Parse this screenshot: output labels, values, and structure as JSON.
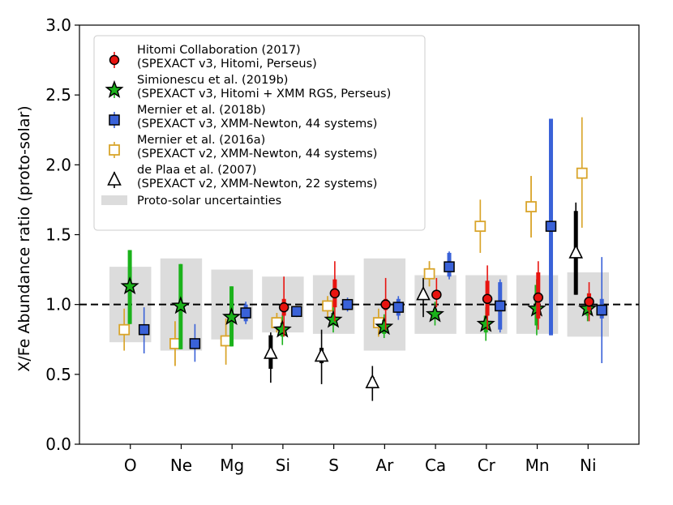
{
  "chart_data": {
    "type": "scatter",
    "title": "",
    "xlabel": "",
    "ylabel": "X/Fe Abundance ratio (proto-solar)",
    "ylim": [
      0.0,
      3.0
    ],
    "yticks": [
      "0.0",
      "0.5",
      "1.0",
      "1.5",
      "2.0",
      "2.5",
      "3.0"
    ],
    "categories": [
      "O",
      "Ne",
      "Mg",
      "Si",
      "S",
      "Ar",
      "Ca",
      "Cr",
      "Mn",
      "Ni"
    ],
    "reference_line": 1.0,
    "proto_solar_band": [
      {
        "lo": 0.73,
        "hi": 1.27
      },
      {
        "lo": 0.67,
        "hi": 1.33
      },
      {
        "lo": 0.75,
        "hi": 1.25
      },
      {
        "lo": 0.8,
        "hi": 1.2
      },
      {
        "lo": 0.79,
        "hi": 1.21
      },
      {
        "lo": 0.67,
        "hi": 1.33
      },
      {
        "lo": 0.79,
        "hi": 1.21
      },
      {
        "lo": 0.79,
        "hi": 1.21
      },
      {
        "lo": 0.79,
        "hi": 1.21
      },
      {
        "lo": 0.77,
        "hi": 1.23
      }
    ],
    "series": [
      {
        "name": "Hitomi Collaboration (2017)",
        "detail": "(SPEXACT v3, Hitomi, Perseus)",
        "marker": "circle",
        "color": "#e8130f",
        "offset": 0.02,
        "points": [
          {
            "x": "Si",
            "y": 0.98,
            "inner": [
              0.92,
              1.04
            ],
            "outer": [
              0.77,
              1.2
            ]
          },
          {
            "x": "S",
            "y": 1.08,
            "inner": [
              0.98,
              1.18
            ],
            "outer": [
              0.88,
              1.31
            ]
          },
          {
            "x": "Ar",
            "y": 1.0,
            "inner": [
              0.96,
              1.04
            ],
            "outer": [
              0.82,
              1.19
            ]
          },
          {
            "x": "Ca",
            "y": 1.07,
            "inner": [
              1.04,
              1.1
            ],
            "outer": [
              0.98,
              1.19
            ]
          },
          {
            "x": "Cr",
            "y": 1.04,
            "inner": [
              0.92,
              1.17
            ],
            "outer": [
              0.82,
              1.28
            ]
          },
          {
            "x": "Mn",
            "y": 1.05,
            "inner": [
              0.9,
              1.23
            ],
            "outer": [
              0.82,
              1.31
            ]
          },
          {
            "x": "Ni",
            "y": 1.02,
            "inner": [
              0.96,
              1.08
            ],
            "outer": [
              0.88,
              1.16
            ]
          }
        ]
      },
      {
        "name": "Simionescu et al. (2019b)",
        "detail": "(SPEXACT v3, Hitomi + XMM RGS, Perseus)",
        "marker": "star",
        "color": "#1bb21b",
        "offset": -0.01,
        "points": [
          {
            "x": "O",
            "y": 1.13,
            "inner": [
              0.86,
              1.39
            ],
            "outer": [
              0.86,
              1.39
            ]
          },
          {
            "x": "Ne",
            "y": 0.99,
            "inner": [
              0.68,
              1.29
            ],
            "outer": [
              0.68,
              1.29
            ]
          },
          {
            "x": "Mg",
            "y": 0.91,
            "inner": [
              0.7,
              1.13
            ],
            "outer": [
              0.7,
              1.13
            ]
          },
          {
            "x": "Si",
            "y": 0.82,
            "inner": [
              0.77,
              0.87
            ],
            "outer": [
              0.71,
              0.93
            ]
          },
          {
            "x": "S",
            "y": 0.89,
            "inner": [
              0.85,
              0.94
            ],
            "outer": [
              0.8,
              0.98
            ]
          },
          {
            "x": "Ar",
            "y": 0.84,
            "inner": [
              0.79,
              0.89
            ],
            "outer": [
              0.76,
              0.93
            ]
          },
          {
            "x": "Ca",
            "y": 0.93,
            "inner": [
              0.9,
              0.97
            ],
            "outer": [
              0.85,
              1.02
            ]
          },
          {
            "x": "Cr",
            "y": 0.86,
            "inner": [
              0.8,
              0.92
            ],
            "outer": [
              0.74,
              0.98
            ]
          },
          {
            "x": "Mn",
            "y": 0.97,
            "inner": [
              0.85,
              1.14
            ],
            "outer": [
              0.78,
              1.18
            ]
          },
          {
            "x": "Ni",
            "y": 0.97,
            "inner": [
              0.92,
              1.03
            ],
            "outer": [
              0.88,
              1.08
            ]
          }
        ]
      },
      {
        "name": "Mernier et al. (2018b)",
        "detail": "(SPEXACT v3, XMM-Newton, 44 systems)",
        "marker": "square",
        "color": "#3a62d8",
        "offset": 0.27,
        "points": [
          {
            "x": "O",
            "y": 0.82,
            "inner": [
              0.8,
              0.84
            ],
            "outer": [
              0.65,
              0.98
            ]
          },
          {
            "x": "Ne",
            "y": 0.72,
            "inner": [
              0.7,
              0.74
            ],
            "outer": [
              0.59,
              0.86
            ]
          },
          {
            "x": "Mg",
            "y": 0.94,
            "inner": [
              0.88,
              1.0
            ],
            "outer": [
              0.86,
              1.02
            ]
          },
          {
            "x": "Si",
            "y": 0.95,
            "inner": [
              0.93,
              0.97
            ],
            "outer": [
              0.91,
              0.99
            ]
          },
          {
            "x": "S",
            "y": 1.0,
            "inner": [
              0.97,
              1.03
            ],
            "outer": [
              0.95,
              1.05
            ]
          },
          {
            "x": "Ar",
            "y": 0.98,
            "inner": [
              0.92,
              1.04
            ],
            "outer": [
              0.89,
              1.06
            ]
          },
          {
            "x": "Ca",
            "y": 1.27,
            "inner": [
              1.2,
              1.37
            ],
            "outer": [
              1.18,
              1.38
            ]
          },
          {
            "x": "Cr",
            "y": 0.99,
            "inner": [
              0.82,
              1.16
            ],
            "outer": [
              0.8,
              1.18
            ]
          },
          {
            "x": "Mn",
            "y": 1.56,
            "inner": [
              0.78,
              2.33
            ],
            "outer": [
              0.78,
              2.33
            ]
          },
          {
            "x": "Ni",
            "y": 0.96,
            "inner": [
              0.9,
              1.04
            ],
            "outer": [
              0.58,
              1.34
            ]
          }
        ]
      },
      {
        "name": "Mernier et al. (2016a)",
        "detail": "(SPEXACT v2, XMM-Newton, 44 systems)",
        "marker": "open-square",
        "color": "#d9a52b",
        "offset": -0.12,
        "points": [
          {
            "x": "O",
            "y": 0.82,
            "inner": [
              0.67,
              0.97
            ],
            "outer": [
              0.67,
              0.97
            ]
          },
          {
            "x": "Ne",
            "y": 0.72,
            "inner": [
              0.56,
              0.88
            ],
            "outer": [
              0.56,
              0.88
            ]
          },
          {
            "x": "Mg",
            "y": 0.74,
            "inner": [
              0.57,
              0.9
            ],
            "outer": [
              0.57,
              0.9
            ]
          },
          {
            "x": "Si",
            "y": 0.87,
            "inner": [
              0.8,
              0.94
            ],
            "outer": [
              0.8,
              0.94
            ]
          },
          {
            "x": "S",
            "y": 0.99,
            "inner": [
              0.91,
              1.06
            ],
            "outer": [
              0.91,
              1.06
            ]
          },
          {
            "x": "Ar",
            "y": 0.87,
            "inner": [
              0.77,
              0.97
            ],
            "outer": [
              0.77,
              0.97
            ]
          },
          {
            "x": "Ca",
            "y": 1.22,
            "inner": [
              1.13,
              1.31
            ],
            "outer": [
              1.13,
              1.31
            ]
          },
          {
            "x": "Cr",
            "y": 1.56,
            "inner": [
              1.37,
              1.75
            ],
            "outer": [
              1.37,
              1.75
            ]
          },
          {
            "x": "Mn",
            "y": 1.7,
            "inner": [
              1.48,
              1.92
            ],
            "outer": [
              1.48,
              1.92
            ]
          },
          {
            "x": "Ni",
            "y": 1.94,
            "inner": [
              1.55,
              2.34
            ],
            "outer": [
              1.55,
              2.34
            ]
          }
        ]
      },
      {
        "name": "de Plaa et al. (2007)",
        "detail": "(SPEXACT v2, XMM-Newton, 22 systems)",
        "marker": "triangle",
        "color": "#000000",
        "offset": -0.24,
        "points": [
          {
            "x": "Si",
            "y": 0.65,
            "inner": [
              0.54,
              0.78
            ],
            "outer": [
              0.44,
              0.8
            ]
          },
          {
            "x": "S",
            "y": 0.63,
            "inner": [
              0.58,
              0.69
            ],
            "outer": [
              0.43,
              0.82
            ]
          },
          {
            "x": "Ar",
            "y": 0.44,
            "inner": [
              0.4,
              0.48
            ],
            "outer": [
              0.31,
              0.56
            ]
          },
          {
            "x": "Ca",
            "y": 1.07,
            "inner": [
              1.04,
              1.1
            ],
            "outer": [
              0.91,
              1.19
            ]
          },
          {
            "x": "Ni",
            "y": 1.37,
            "inner": [
              1.07,
              1.67
            ],
            "outer": [
              1.07,
              1.73
            ]
          }
        ]
      }
    ],
    "band_label": "Proto-solar uncertainties",
    "legend_location": "upper-left"
  }
}
